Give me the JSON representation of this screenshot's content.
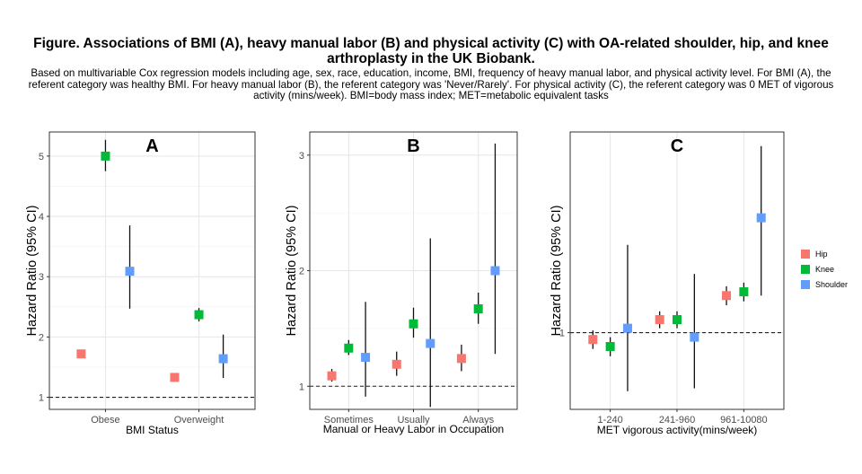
{
  "figure": {
    "title": "Figure. Associations of BMI (A), heavy manual labor (B) and physical activity (C) with OA-related shoulder, hip, and knee arthroplasty in the UK Biobank.",
    "caption": "Based on multivariable Cox regression models including age, sex, race, education, income, BMI, frequency of heavy manual labor, and physical activity level. For BMI (A), the referent category was healthy BMI. For heavy manual labor (B), the referent category was 'Never/Rarely'. For physical activity (C), the referent category was 0 MET of vigorous activity (mins/week). BMI=body mass index; MET=metabolic equivalent tasks"
  },
  "legend": {
    "placement": "right",
    "items": [
      {
        "name": "Hip",
        "color": "#F8766D"
      },
      {
        "name": "Knee",
        "color": "#00BA38"
      },
      {
        "name": "Shoulder",
        "color": "#619CFF"
      }
    ]
  },
  "chart_data": [
    {
      "type": "scatter",
      "panel_label": "A",
      "xlabel": "BMI Status",
      "ylabel": "Hazard Ratio (95% CI)",
      "categories": [
        "Obese",
        "Overweight"
      ],
      "ylim": [
        0.8,
        5.4
      ],
      "yticks": [
        1,
        2,
        3,
        4,
        5
      ],
      "reference_line": 1,
      "series": [
        {
          "name": "Hip",
          "values": [
            1.72,
            1.33
          ],
          "lower": [
            1.66,
            1.29
          ],
          "upper": [
            1.78,
            1.38
          ]
        },
        {
          "name": "Knee",
          "values": [
            5.0,
            2.37
          ],
          "lower": [
            4.75,
            2.26
          ],
          "upper": [
            5.27,
            2.48
          ]
        },
        {
          "name": "Shoulder",
          "values": [
            3.09,
            1.64
          ],
          "lower": [
            2.47,
            1.32
          ],
          "upper": [
            3.85,
            2.04
          ]
        }
      ]
    },
    {
      "type": "scatter",
      "panel_label": "B",
      "xlabel": "Manual or Heavy Labor in Occupation",
      "ylabel": "Hazard Ratio (95% CI)",
      "categories": [
        "Sometimes",
        "Usually",
        "Always"
      ],
      "ylim": [
        0.8,
        3.2
      ],
      "yticks": [
        1,
        2,
        3
      ],
      "reference_line": 1,
      "series": [
        {
          "name": "Hip",
          "values": [
            1.09,
            1.19,
            1.24
          ],
          "lower": [
            1.04,
            1.09,
            1.13
          ],
          "upper": [
            1.15,
            1.3,
            1.36
          ]
        },
        {
          "name": "Knee",
          "values": [
            1.33,
            1.54,
            1.67
          ],
          "lower": [
            1.27,
            1.42,
            1.54
          ],
          "upper": [
            1.4,
            1.68,
            1.81
          ]
        },
        {
          "name": "Shoulder",
          "values": [
            1.25,
            1.37,
            2.0
          ],
          "lower": [
            0.91,
            0.82,
            1.28
          ],
          "upper": [
            1.73,
            2.28,
            3.1
          ]
        }
      ]
    },
    {
      "type": "scatter",
      "panel_label": "C",
      "xlabel": "MET vigorous activity(mins/week)",
      "ylabel": "Hazard Ratio (95% CI)",
      "categories": [
        "1-240",
        "241-960",
        "961-10080"
      ],
      "yscale": "log",
      "ylim": [
        0.71,
        2.45
      ],
      "yticks": [
        1
      ],
      "reference_line": 1,
      "series": [
        {
          "name": "Hip",
          "values": [
            0.97,
            1.06,
            1.18
          ],
          "lower": [
            0.93,
            1.02,
            1.13
          ],
          "upper": [
            1.01,
            1.1,
            1.23
          ]
        },
        {
          "name": "Knee",
          "values": [
            0.94,
            1.06,
            1.2
          ],
          "lower": [
            0.9,
            1.02,
            1.15
          ],
          "upper": [
            0.98,
            1.1,
            1.25
          ]
        },
        {
          "name": "Shoulder",
          "values": [
            1.02,
            0.98,
            1.67
          ],
          "lower": [
            0.77,
            0.78,
            1.18
          ],
          "upper": [
            1.48,
            1.3,
            2.3
          ]
        }
      ]
    }
  ]
}
